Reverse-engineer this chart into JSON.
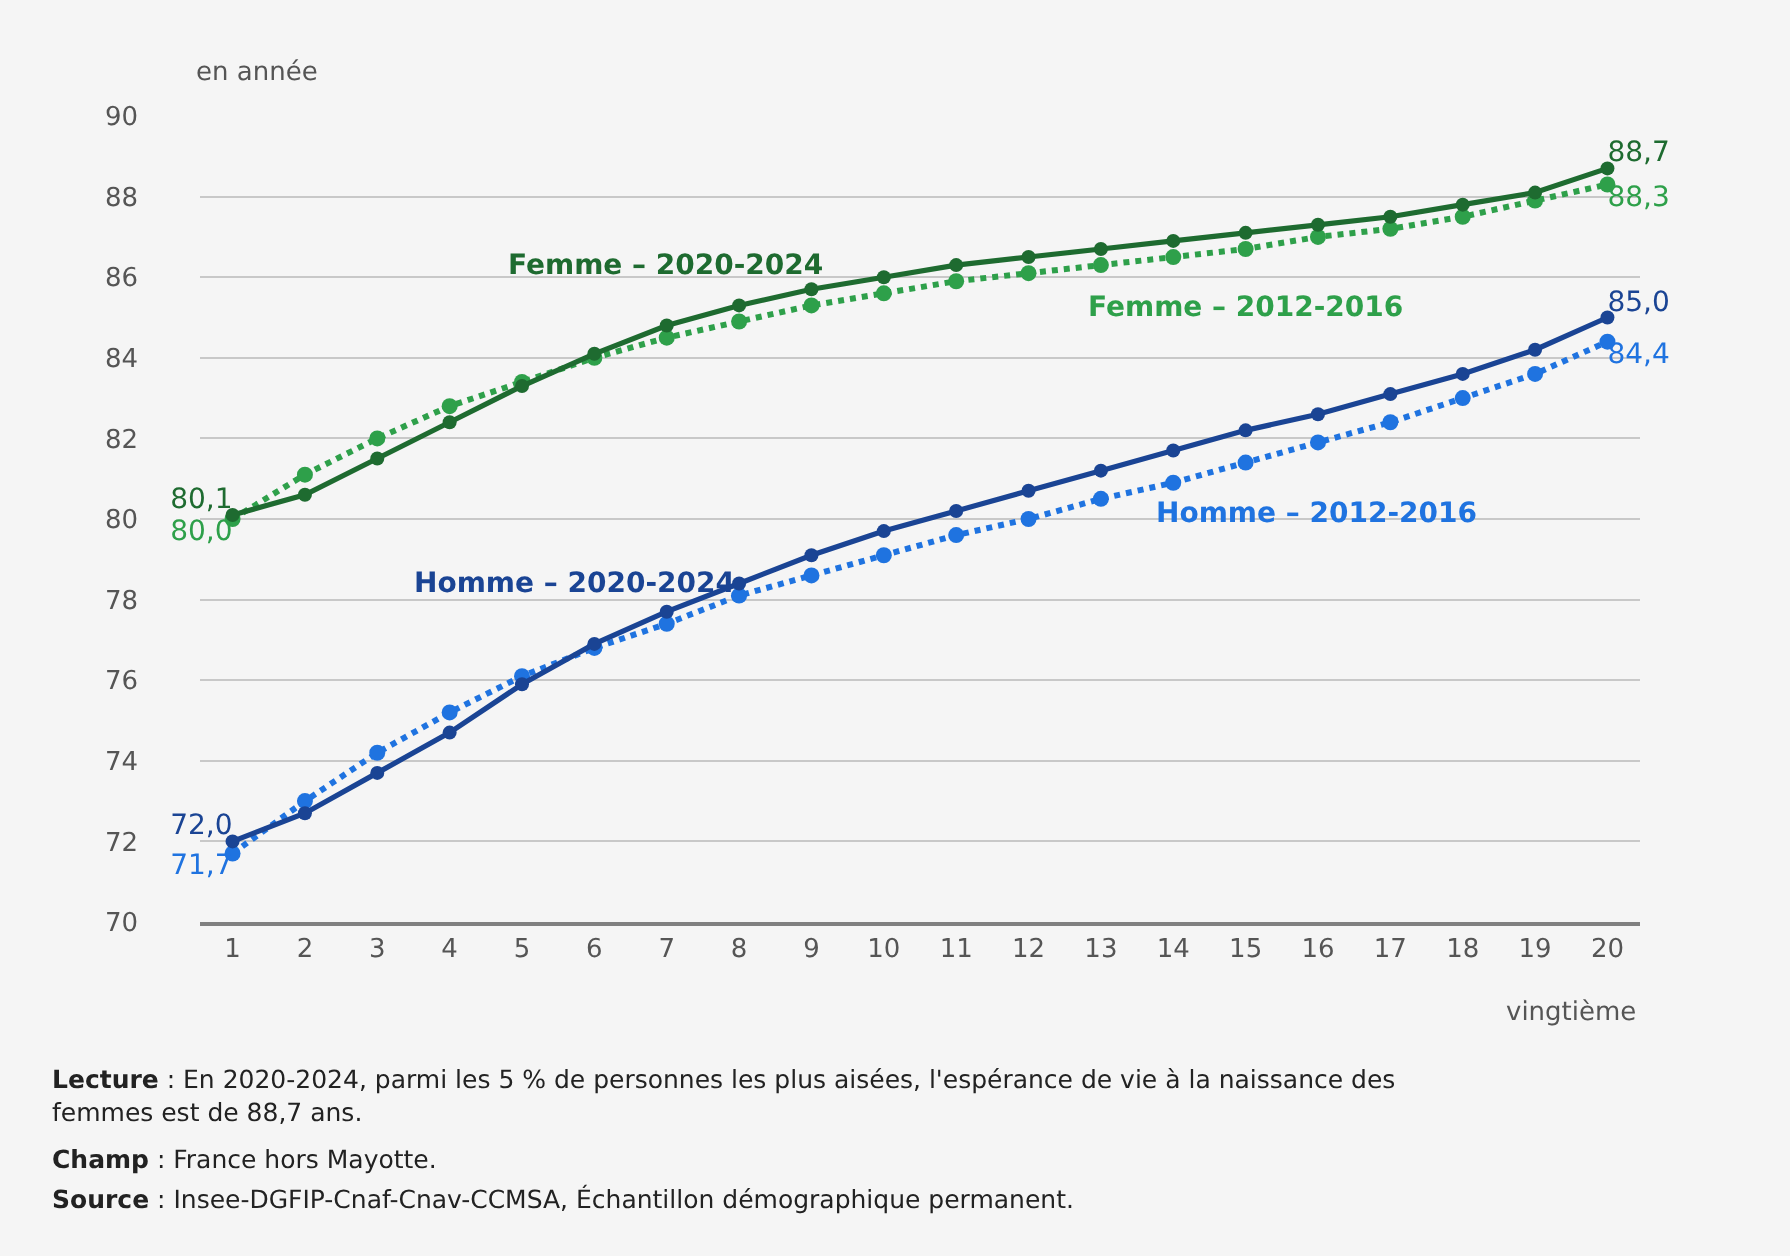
{
  "chart_data": {
    "type": "line",
    "xlabel": "vingtième",
    "ylabel": "en année",
    "x": [
      1,
      2,
      3,
      4,
      5,
      6,
      7,
      8,
      9,
      10,
      11,
      12,
      13,
      14,
      15,
      16,
      17,
      18,
      19,
      20
    ],
    "xlim": [
      0.55,
      20.45
    ],
    "xticks": [
      1,
      2,
      3,
      4,
      5,
      6,
      7,
      8,
      9,
      10,
      11,
      12,
      13,
      14,
      15,
      16,
      17,
      18,
      19,
      20
    ],
    "ylim": [
      70,
      90
    ],
    "yticks": [
      70,
      72,
      74,
      76,
      78,
      80,
      82,
      84,
      86,
      88,
      90
    ],
    "grid": "y",
    "legend": false,
    "marker": "circle",
    "series": [
      {
        "name": "Femme – 2020-2024",
        "color": "#1e6b30",
        "line_style": "solid",
        "values": [
          80.1,
          80.6,
          81.5,
          82.4,
          83.3,
          84.1,
          84.8,
          85.3,
          85.7,
          86.0,
          86.3,
          86.5,
          86.7,
          86.9,
          87.1,
          87.3,
          87.5,
          87.8,
          88.1,
          88.7
        ],
        "value_labels": [
          "80,1",
          null,
          null,
          null,
          null,
          null,
          null,
          null,
          null,
          null,
          null,
          null,
          null,
          null,
          null,
          null,
          null,
          null,
          null,
          "88,7"
        ]
      },
      {
        "name": "Femme – 2012-2016",
        "color": "#2ea04a",
        "line_style": "dotted",
        "values": [
          80.0,
          81.1,
          82.0,
          82.8,
          83.4,
          84.0,
          84.5,
          84.9,
          85.3,
          85.6,
          85.9,
          86.1,
          86.3,
          86.5,
          86.7,
          87.0,
          87.2,
          87.5,
          87.9,
          88.3
        ],
        "value_labels": [
          "80,0",
          null,
          null,
          null,
          null,
          null,
          null,
          null,
          null,
          null,
          null,
          null,
          null,
          null,
          null,
          null,
          null,
          null,
          null,
          "88,3"
        ]
      },
      {
        "name": "Homme – 2020-2024",
        "color": "#1a4494",
        "line_style": "solid",
        "values": [
          72.0,
          72.7,
          73.7,
          74.7,
          75.9,
          76.9,
          77.7,
          78.4,
          79.1,
          79.7,
          80.2,
          80.7,
          81.2,
          81.7,
          82.2,
          82.6,
          83.1,
          83.6,
          84.2,
          85.0
        ],
        "value_labels": [
          "72,0",
          null,
          null,
          null,
          null,
          null,
          null,
          null,
          null,
          null,
          null,
          null,
          null,
          null,
          null,
          null,
          null,
          null,
          null,
          "85,0"
        ]
      },
      {
        "name": "Homme – 2012-2016",
        "color": "#1f73e0",
        "line_style": "dotted",
        "values": [
          71.7,
          73.0,
          74.2,
          75.2,
          76.1,
          76.8,
          77.4,
          78.1,
          78.6,
          79.1,
          79.6,
          80.0,
          80.5,
          80.9,
          81.4,
          81.9,
          82.4,
          83.0,
          83.6,
          84.4
        ],
        "value_labels": [
          "71,7",
          null,
          null,
          null,
          null,
          null,
          null,
          null,
          null,
          null,
          null,
          null,
          null,
          null,
          null,
          null,
          null,
          null,
          null,
          "84,4"
        ]
      }
    ],
    "annotations": [
      "Lecture : En 2020-2024, parmi les 5 % de personnes les plus aisées, l'espérance de vie à la naissance des femmes est de 88,7 ans.",
      "Champ : France hors Mayotte.",
      "Source : Insee-DGFIP-Cnaf-Cnav-CCMSA, Échantillon démographique permanent."
    ]
  }
}
